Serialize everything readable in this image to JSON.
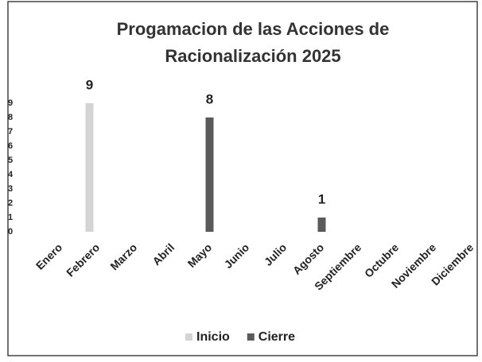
{
  "chart_data": {
    "type": "bar",
    "title_lines": [
      "Progamacion de las Acciones de",
      "Racionalización 2025"
    ],
    "categories": [
      "Enero",
      "Febrero",
      "Marzo",
      "Abril",
      "Mayo",
      "Junio",
      "Julio",
      "Agosto",
      "Septiembre",
      "Octubre",
      "Noviembre",
      "Diciembre"
    ],
    "series": [
      {
        "name": "Inicio",
        "color": "#d4d4d4",
        "values": [
          null,
          9,
          null,
          null,
          null,
          null,
          null,
          null,
          null,
          null,
          null,
          null
        ]
      },
      {
        "name": "Cierre",
        "color": "#5a5a5a",
        "values": [
          null,
          null,
          null,
          null,
          8,
          null,
          null,
          1,
          null,
          null,
          null,
          null
        ]
      }
    ],
    "ylim": [
      0,
      9
    ],
    "yticks": [
      0,
      1,
      2,
      3,
      4,
      5,
      6,
      7,
      8,
      9
    ],
    "grid": false,
    "legend": "bottom"
  }
}
